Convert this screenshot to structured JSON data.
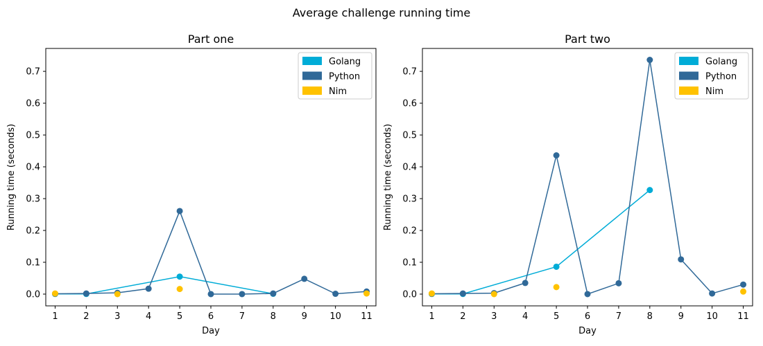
{
  "figure_title": "Average challenge running time",
  "colors": {
    "Golang": "#00acd7",
    "Python": "#306998",
    "Nim": "#ffc200"
  },
  "chart_data": [
    {
      "type": "line",
      "title": "Part one",
      "xlabel": "Day",
      "ylabel": "Running time (seconds)",
      "x_ticks": [
        1,
        2,
        3,
        4,
        5,
        6,
        7,
        8,
        9,
        10,
        11
      ],
      "y_ticks": [
        "0.0",
        "0.1",
        "0.2",
        "0.3",
        "0.4",
        "0.5",
        "0.6",
        "0.7"
      ],
      "xlim": [
        0.7,
        11.3
      ],
      "ylim": [
        -0.037,
        0.772
      ],
      "legend_position": "top-right",
      "series": [
        {
          "name": "Golang",
          "x": [
            1,
            2,
            5,
            8
          ],
          "values": [
            0.0005,
            0.0005,
            0.055,
            0.001
          ],
          "style": "line-markers"
        },
        {
          "name": "Python",
          "x": [
            1,
            2,
            3,
            4,
            5,
            6,
            7,
            8,
            9,
            10,
            11
          ],
          "values": [
            0.001,
            0.002,
            0.004,
            0.017,
            0.261,
            0.0,
            0.0,
            0.002,
            0.048,
            0.001,
            0.008
          ],
          "style": "line-markers"
        },
        {
          "name": "Nim",
          "x": [
            1,
            3,
            5,
            11
          ],
          "values": [
            0.002,
            0.0,
            0.016,
            0.002
          ],
          "style": "markers"
        }
      ]
    },
    {
      "type": "line",
      "title": "Part two",
      "xlabel": "Day",
      "ylabel": "Running time (seconds)",
      "x_ticks": [
        1,
        2,
        3,
        4,
        5,
        6,
        7,
        8,
        9,
        10,
        11
      ],
      "y_ticks": [
        "0.0",
        "0.1",
        "0.2",
        "0.3",
        "0.4",
        "0.5",
        "0.6",
        "0.7"
      ],
      "xlim": [
        0.7,
        11.3
      ],
      "ylim": [
        -0.037,
        0.772
      ],
      "legend_position": "top-right",
      "series": [
        {
          "name": "Golang",
          "x": [
            1,
            2,
            5,
            8
          ],
          "values": [
            0.0005,
            0.0005,
            0.086,
            0.327
          ],
          "style": "line-markers"
        },
        {
          "name": "Python",
          "x": [
            1,
            2,
            3,
            4,
            5,
            6,
            7,
            8,
            9,
            10,
            11
          ],
          "values": [
            0.001,
            0.002,
            0.003,
            0.035,
            0.436,
            0.0,
            0.034,
            0.736,
            0.109,
            0.002,
            0.03
          ],
          "style": "line-markers"
        },
        {
          "name": "Nim",
          "x": [
            1,
            3,
            5,
            11
          ],
          "values": [
            0.002,
            0.0,
            0.022,
            0.008
          ],
          "style": "markers"
        }
      ]
    }
  ]
}
